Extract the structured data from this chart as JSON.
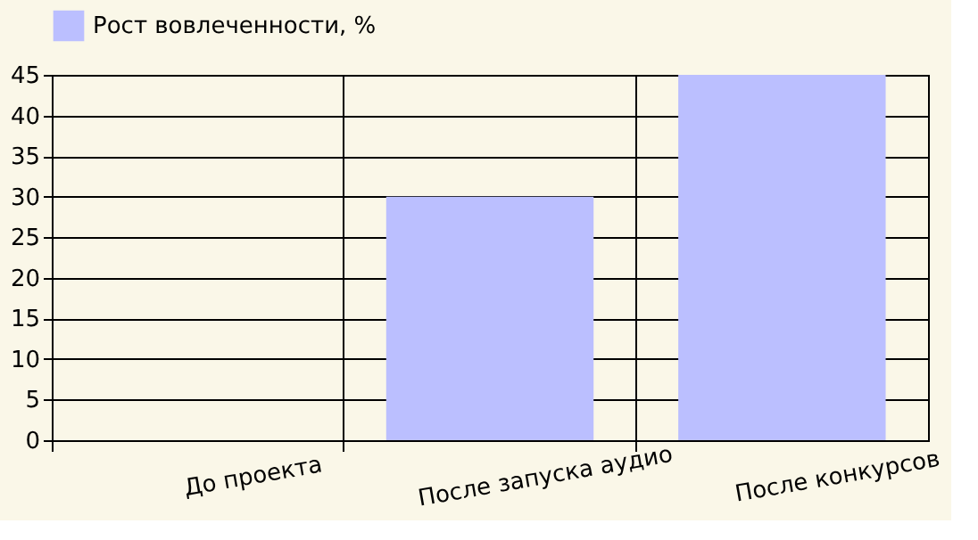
{
  "chart_data": {
    "type": "bar",
    "categories": [
      "До проекта",
      "После запуска аудио",
      "После конкурсов"
    ],
    "series": [
      {
        "name": "Рост вовлеченности, %",
        "color": "#bbbfff",
        "values": [
          0,
          30,
          45
        ]
      }
    ],
    "ylim": [
      0,
      45
    ],
    "yticks": [
      0,
      5,
      10,
      15,
      20,
      25,
      30,
      35,
      40,
      45
    ],
    "grid": true,
    "legend": "top"
  }
}
